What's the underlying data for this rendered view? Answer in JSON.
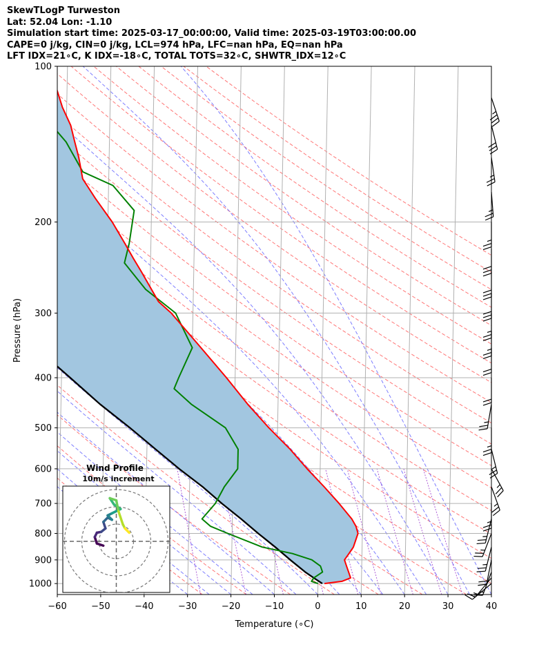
{
  "header": {
    "lines": [
      "SkewTLogP Turweston",
      "Lat: 52.04   Lon: -1.10",
      "Simulation start time: 2025-03-17_00:00:00, Valid time: 2025-03-19T03:00:00.00",
      "CAPE=0 j/kg, CIN=0 j/kg, LCL=974 hPa, LFC=nan hPa, EQ=nan hPa",
      "LFT IDX=21∘C, K IDX=-18∘C, TOTAL TOTS=32∘C, SHWTR_IDX=12∘C"
    ]
  },
  "chart_data": {
    "type": "skewt",
    "xlabel": "Temperature (∘C)",
    "ylabel": "Pressure (hPa)",
    "xlim": [
      -60,
      40
    ],
    "plim": [
      1050,
      100
    ],
    "x_ticks": [
      -60,
      -50,
      -40,
      -30,
      -20,
      -10,
      0,
      10,
      20,
      30,
      40
    ],
    "x_tick_labels": [
      "−60",
      "−50",
      "−40",
      "−30",
      "−20",
      "−10",
      "0",
      "10",
      "20",
      "30",
      "40"
    ],
    "p_ticks": [
      1000,
      900,
      800,
      700,
      600,
      500,
      400,
      300,
      200,
      100
    ],
    "p_tick_labels": [
      "1000",
      "900",
      "800",
      "700",
      "600",
      "500",
      "400",
      "300",
      "200",
      "100"
    ],
    "grid": true,
    "colors": {
      "temperature": "#ff0000",
      "dewpoint": "#008000",
      "parcel": "#000000",
      "shade": "#a2c6e0",
      "dry_adiabat": "#ff6666",
      "moist_adiabat": "#6666ff",
      "mixing_ratio": "#9933cc",
      "isotherm": "#b0b0b0"
    },
    "temperature": [
      {
        "p": 1000,
        "t": 1.5
      },
      {
        "p": 990,
        "t": 5.5
      },
      {
        "p": 975,
        "t": 7.5
      },
      {
        "p": 950,
        "t": 7.0
      },
      {
        "p": 925,
        "t": 6.5
      },
      {
        "p": 900,
        "t": 6.0
      },
      {
        "p": 875,
        "t": 7.0
      },
      {
        "p": 850,
        "t": 8.0
      },
      {
        "p": 800,
        "t": 9.0
      },
      {
        "p": 775,
        "t": 8.5
      },
      {
        "p": 750,
        "t": 7.5
      },
      {
        "p": 700,
        "t": 4.5
      },
      {
        "p": 650,
        "t": 1.0
      },
      {
        "p": 600,
        "t": -3.0
      },
      {
        "p": 550,
        "t": -7.0
      },
      {
        "p": 500,
        "t": -12.0
      },
      {
        "p": 450,
        "t": -17.0
      },
      {
        "p": 400,
        "t": -22.0
      },
      {
        "p": 350,
        "t": -28.0
      },
      {
        "p": 300,
        "t": -35.0
      },
      {
        "p": 285,
        "t": -38.0
      },
      {
        "p": 250,
        "t": -42.0
      },
      {
        "p": 235,
        "t": -44.0
      },
      {
        "p": 220,
        "t": -46.0
      },
      {
        "p": 200,
        "t": -49.0
      },
      {
        "p": 180,
        "t": -53.0
      },
      {
        "p": 165,
        "t": -56.0
      },
      {
        "p": 150,
        "t": -57.0
      },
      {
        "p": 140,
        "t": -58.0
      },
      {
        "p": 130,
        "t": -59.0
      },
      {
        "p": 120,
        "t": -61.0
      },
      {
        "p": 110,
        "t": -62.5
      },
      {
        "p": 100,
        "t": -66.0
      }
    ],
    "dewpoint": [
      {
        "p": 1000,
        "t": 0.0
      },
      {
        "p": 990,
        "t": -1.5
      },
      {
        "p": 975,
        "t": -1.0
      },
      {
        "p": 950,
        "t": 1.0
      },
      {
        "p": 925,
        "t": 0.5
      },
      {
        "p": 900,
        "t": -1.5
      },
      {
        "p": 875,
        "t": -6.0
      },
      {
        "p": 850,
        "t": -13.0
      },
      {
        "p": 800,
        "t": -21.0
      },
      {
        "p": 775,
        "t": -25.0
      },
      {
        "p": 750,
        "t": -27.0
      },
      {
        "p": 700,
        "t": -24.0
      },
      {
        "p": 650,
        "t": -22.0
      },
      {
        "p": 600,
        "t": -19.0
      },
      {
        "p": 550,
        "t": -19.0
      },
      {
        "p": 500,
        "t": -22.0
      },
      {
        "p": 450,
        "t": -30.0
      },
      {
        "p": 420,
        "t": -34.0
      },
      {
        "p": 400,
        "t": -33.0
      },
      {
        "p": 350,
        "t": -30.0
      },
      {
        "p": 300,
        "t": -34.0
      },
      {
        "p": 270,
        "t": -41.0
      },
      {
        "p": 240,
        "t": -46.0
      },
      {
        "p": 220,
        "t": -45.0
      },
      {
        "p": 190,
        "t": -44.0
      },
      {
        "p": 170,
        "t": -49.0
      },
      {
        "p": 160,
        "t": -56.0
      },
      {
        "p": 140,
        "t": -60.0
      },
      {
        "p": 120,
        "t": -67.0
      },
      {
        "p": 110,
        "t": -71.0
      },
      {
        "p": 100,
        "t": -76.0
      }
    ],
    "parcel": [
      {
        "p": 1000,
        "t": 1.0
      },
      {
        "p": 975,
        "t": -1.0
      },
      {
        "p": 950,
        "t": -3.0
      },
      {
        "p": 900,
        "t": -6.5
      },
      {
        "p": 850,
        "t": -10.0
      },
      {
        "p": 800,
        "t": -14.0
      },
      {
        "p": 750,
        "t": -18.0
      },
      {
        "p": 700,
        "t": -22.5
      },
      {
        "p": 650,
        "t": -27.0
      },
      {
        "p": 600,
        "t": -32.5
      },
      {
        "p": 550,
        "t": -38.0
      },
      {
        "p": 500,
        "t": -44.0
      },
      {
        "p": 450,
        "t": -51.0
      },
      {
        "p": 400,
        "t": -58.0
      },
      {
        "p": 350,
        "t": -66.0
      },
      {
        "p": 300,
        "t": -75.0
      },
      {
        "p": 250,
        "t": -85.0
      },
      {
        "p": 200,
        "t": -97.0
      },
      {
        "p": 150,
        "t": -112.0
      },
      {
        "p": 120,
        "t": -123.0
      },
      {
        "p": 100,
        "t": -131.0
      }
    ],
    "wind_barbs": [
      {
        "p": 1000,
        "u": 6,
        "v": 5
      },
      {
        "p": 975,
        "u": 5,
        "v": 6
      },
      {
        "p": 950,
        "u": 3,
        "v": 8
      },
      {
        "p": 900,
        "u": 2,
        "v": 10
      },
      {
        "p": 850,
        "u": 3,
        "v": 12
      },
      {
        "p": 800,
        "u": 5,
        "v": 13
      },
      {
        "p": 750,
        "u": 3,
        "v": 12
      },
      {
        "p": 700,
        "u": 0,
        "v": 12
      },
      {
        "p": 650,
        "u": -4,
        "v": 11
      },
      {
        "p": 600,
        "u": -6,
        "v": 11
      },
      {
        "p": 550,
        "u": -3,
        "v": 12
      },
      {
        "p": 500,
        "u": 0,
        "v": 13
      },
      {
        "p": 450,
        "u": 2,
        "v": 12
      },
      {
        "p": 400,
        "u": 0,
        "v": 11
      },
      {
        "p": 350,
        "u": 0,
        "v": 10
      },
      {
        "p": 325,
        "u": 0,
        "v": 12
      },
      {
        "p": 300,
        "u": 0,
        "v": 14
      },
      {
        "p": 275,
        "u": 0,
        "v": 15
      },
      {
        "p": 250,
        "u": 0,
        "v": 16
      },
      {
        "p": 225,
        "u": 0,
        "v": 15
      },
      {
        "p": 200,
        "u": 0,
        "v": 14
      },
      {
        "p": 175,
        "u": -1,
        "v": 13
      },
      {
        "p": 150,
        "u": -2,
        "v": 14
      },
      {
        "p": 130,
        "u": -4,
        "v": 16
      },
      {
        "p": 115,
        "u": -6,
        "v": 18
      }
    ],
    "inset": {
      "title_line1": "Wind Profile",
      "title_line2": "10m/s increment",
      "hodograph": [
        {
          "u": -3,
          "v": -1
        },
        {
          "u": -4.5,
          "v": -0.5
        },
        {
          "u": -5,
          "v": 1
        },
        {
          "u": -4.5,
          "v": 2
        },
        {
          "u": -3.5,
          "v": 2.2
        },
        {
          "u": -2.5,
          "v": 3
        },
        {
          "u": -3,
          "v": 4.5
        },
        {
          "u": -2,
          "v": 5.5
        },
        {
          "u": -1,
          "v": 5
        },
        {
          "u": -2,
          "v": 6
        },
        {
          "u": -1,
          "v": 6.5
        },
        {
          "u": 0,
          "v": 7
        },
        {
          "u": 1,
          "v": 7.5
        },
        {
          "u": -0.5,
          "v": 8.5
        },
        {
          "u": -1.5,
          "v": 10
        },
        {
          "u": 0,
          "v": 9.5
        },
        {
          "u": 0.5,
          "v": 7
        },
        {
          "u": 1.5,
          "v": 4
        },
        {
          "u": 2,
          "v": 3
        },
        {
          "u": 3,
          "v": 2
        }
      ]
    }
  }
}
